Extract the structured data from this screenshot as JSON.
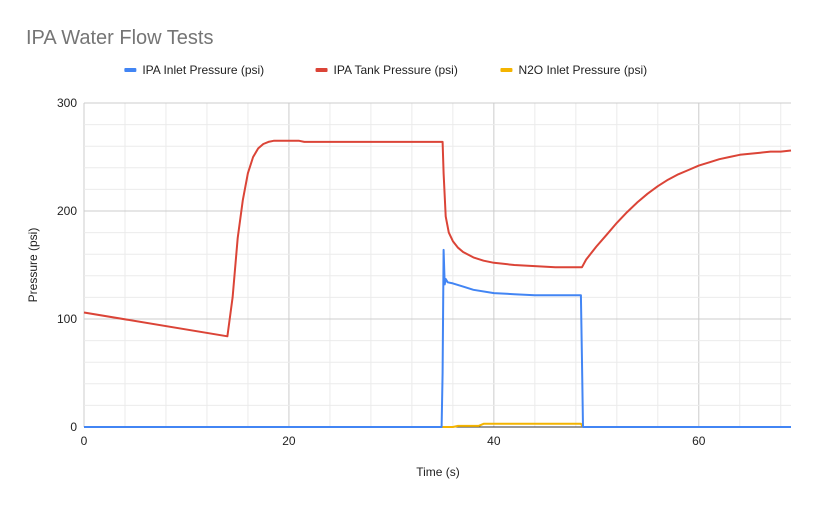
{
  "chart_data": {
    "type": "line",
    "title": "IPA Water Flow Tests",
    "xlabel": "Time (s)",
    "ylabel": "Pressure (psi)",
    "xlim": [
      0,
      69
    ],
    "ylim": [
      0,
      300
    ],
    "xticks": [
      0,
      20,
      40,
      60
    ],
    "yticks": [
      0,
      100,
      200,
      300
    ],
    "grid": true,
    "legend_position": "top",
    "series": [
      {
        "name": "IPA Inlet Pressure (psi)",
        "color": "#4285f4",
        "x": [
          0,
          34.9,
          35.0,
          35.1,
          35.2,
          35.3,
          35.5,
          36,
          37,
          38,
          40,
          42,
          44,
          46,
          48,
          48.5,
          48.6,
          48.7,
          49,
          69
        ],
        "y": [
          0,
          0,
          50,
          164,
          132,
          137,
          134,
          133,
          130,
          127,
          124,
          123,
          122,
          122,
          122,
          122,
          60,
          0,
          0,
          0
        ]
      },
      {
        "name": "IPA Tank Pressure (psi)",
        "color": "#db4437",
        "x": [
          0,
          14,
          14.5,
          15,
          15.5,
          16,
          16.5,
          17,
          17.5,
          18,
          18.5,
          19,
          20,
          21,
          21.5,
          22,
          24,
          26,
          28,
          30,
          32,
          34,
          35.0,
          35.1,
          35.3,
          35.6,
          36,
          36.5,
          37,
          38,
          39,
          40,
          42,
          44,
          46,
          48,
          48.6,
          49,
          50,
          51,
          52,
          53,
          54,
          55,
          56,
          57,
          58,
          59,
          60,
          61,
          62,
          63,
          64,
          65,
          66,
          67,
          68,
          69
        ],
        "y": [
          106,
          84,
          120,
          175,
          210,
          235,
          250,
          258,
          262,
          264,
          265,
          265,
          265,
          265,
          264,
          264,
          264,
          264,
          264,
          264,
          264,
          264,
          264,
          235,
          195,
          180,
          172,
          166,
          162,
          157,
          154,
          152,
          150,
          149,
          148,
          148,
          148,
          155,
          167,
          178,
          189,
          199,
          208,
          216,
          223,
          229,
          234,
          238,
          242,
          245,
          248,
          250,
          252,
          253,
          254,
          255,
          255,
          256
        ]
      },
      {
        "name": "N2O Inlet Pressure (psi)",
        "color": "#f4b400",
        "x": [
          0,
          36,
          36.5,
          38.5,
          39,
          48.5,
          48.7,
          69
        ],
        "y": [
          0,
          0,
          1,
          1,
          3,
          3,
          0,
          0
        ]
      }
    ]
  }
}
